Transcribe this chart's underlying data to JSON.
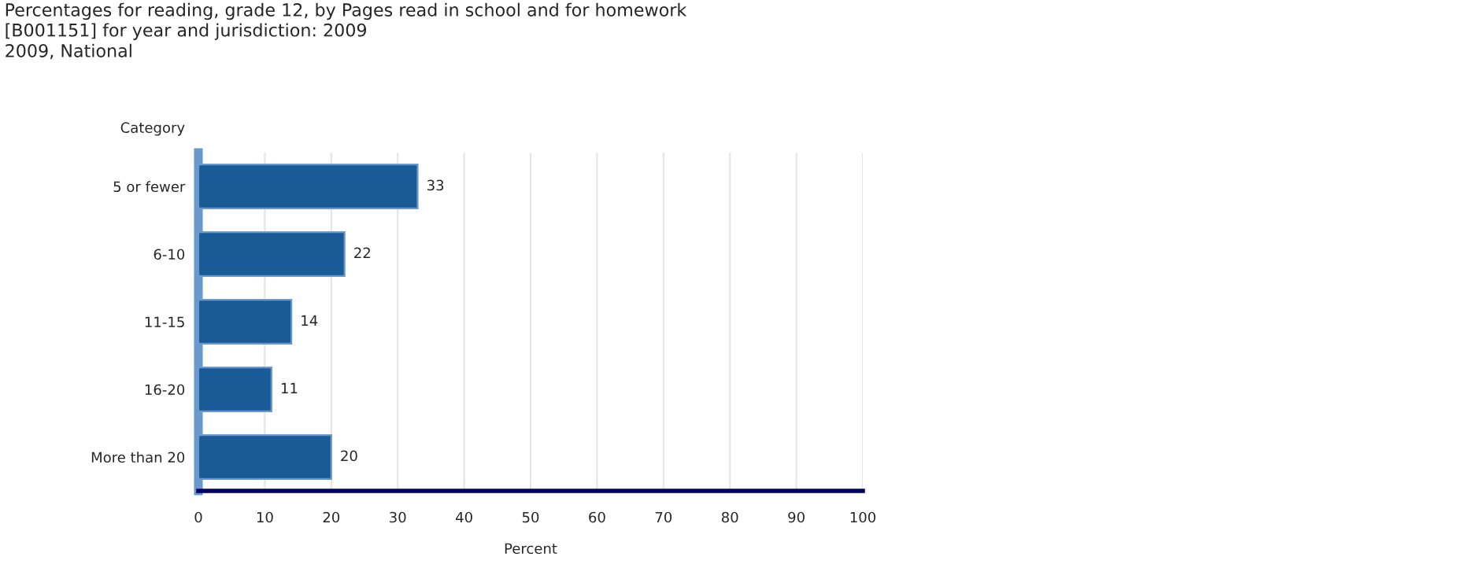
{
  "chart_data": {
    "type": "bar",
    "orientation": "horizontal",
    "title": "Percentages for reading, grade 12, by Pages read in school and for homework\n[B001151] for year and jurisdiction: 2009",
    "subtitle": "2009, National",
    "ylabel": "Category",
    "xlabel": "Percent",
    "categories": [
      "5 or fewer",
      "6-10",
      "11-15",
      "16-20",
      "More than 20"
    ],
    "values": [
      33,
      22,
      14,
      11,
      20
    ],
    "color": "#1a5a96",
    "xlim": [
      0,
      100
    ],
    "xticks": [
      0,
      10,
      20,
      30,
      40,
      50,
      60,
      70,
      80,
      90,
      100
    ],
    "grid": "x",
    "data_labels": true
  }
}
